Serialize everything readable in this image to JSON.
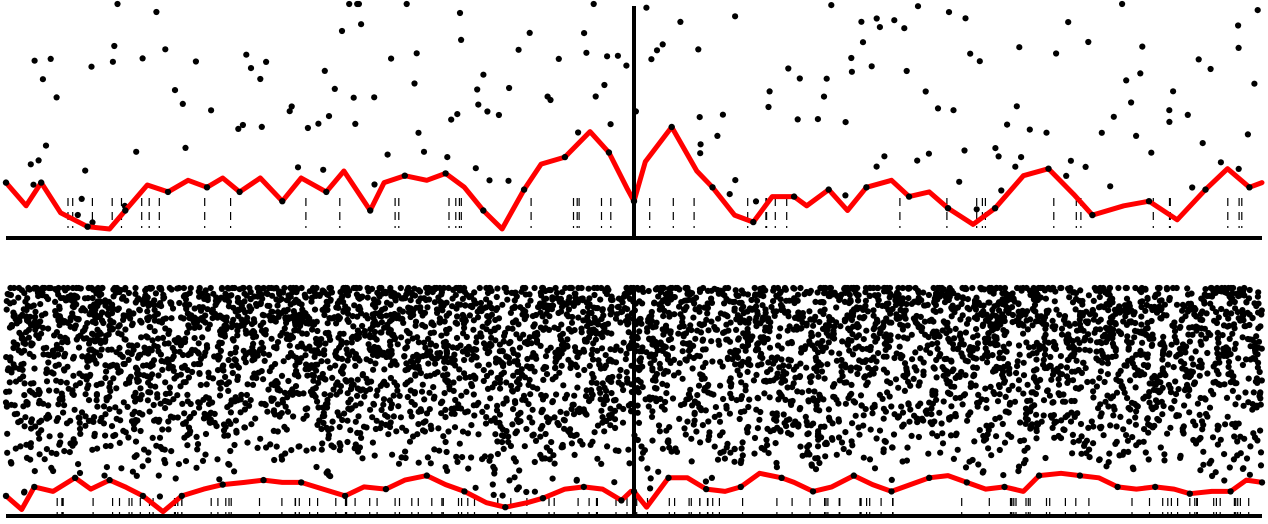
{
  "chart_data": [
    {
      "type": "scatter",
      "panel": "top",
      "x_range": [
        -1,
        1
      ],
      "y_range": [
        0,
        1
      ],
      "center_line_x": 0,
      "grid": false,
      "legend": "none",
      "colors": {
        "curve": "#ff0000",
        "points": "#000000",
        "axis": "#000000"
      },
      "curve_points": [
        [
          -1.0,
          0.23
        ],
        [
          -0.968,
          0.13
        ],
        [
          -0.944,
          0.23
        ],
        [
          -0.913,
          0.1
        ],
        [
          -0.87,
          0.04
        ],
        [
          -0.835,
          0.03
        ],
        [
          -0.81,
          0.11
        ],
        [
          -0.775,
          0.22
        ],
        [
          -0.742,
          0.19
        ],
        [
          -0.71,
          0.24
        ],
        [
          -0.68,
          0.21
        ],
        [
          -0.655,
          0.25
        ],
        [
          -0.628,
          0.19
        ],
        [
          -0.595,
          0.25
        ],
        [
          -0.56,
          0.15
        ],
        [
          -0.53,
          0.25
        ],
        [
          -0.49,
          0.19
        ],
        [
          -0.462,
          0.28
        ],
        [
          -0.42,
          0.11
        ],
        [
          -0.398,
          0.23
        ],
        [
          -0.365,
          0.26
        ],
        [
          -0.33,
          0.24
        ],
        [
          -0.3,
          0.27
        ],
        [
          -0.27,
          0.21
        ],
        [
          -0.24,
          0.11
        ],
        [
          -0.21,
          0.03
        ],
        [
          -0.175,
          0.2
        ],
        [
          -0.148,
          0.31
        ],
        [
          -0.11,
          0.34
        ],
        [
          -0.07,
          0.45
        ],
        [
          -0.04,
          0.36
        ],
        [
          -0.01,
          0.2
        ],
        [
          0.0,
          0.15
        ],
        [
          0.018,
          0.32
        ],
        [
          0.06,
          0.47
        ],
        [
          0.1,
          0.28
        ],
        [
          0.125,
          0.21
        ],
        [
          0.16,
          0.09
        ],
        [
          0.19,
          0.06
        ],
        [
          0.22,
          0.17
        ],
        [
          0.255,
          0.17
        ],
        [
          0.275,
          0.13
        ],
        [
          0.31,
          0.2
        ],
        [
          0.34,
          0.11
        ],
        [
          0.37,
          0.21
        ],
        [
          0.41,
          0.24
        ],
        [
          0.438,
          0.17
        ],
        [
          0.47,
          0.19
        ],
        [
          0.5,
          0.12
        ],
        [
          0.54,
          0.05
        ],
        [
          0.575,
          0.12
        ],
        [
          0.62,
          0.26
        ],
        [
          0.66,
          0.29
        ],
        [
          0.7,
          0.18
        ],
        [
          0.73,
          0.09
        ],
        [
          0.78,
          0.13
        ],
        [
          0.82,
          0.15
        ],
        [
          0.865,
          0.07
        ],
        [
          0.91,
          0.2
        ],
        [
          0.945,
          0.29
        ],
        [
          0.98,
          0.21
        ],
        [
          1.0,
          0.23
        ]
      ],
      "scatter_count": 180,
      "scatter_seed": 11,
      "rug_count": 46,
      "rug_seed": 7
    },
    {
      "type": "scatter",
      "panel": "bottom",
      "x_range": [
        -1,
        1
      ],
      "y_range": [
        0,
        1
      ],
      "center_line_x": 0,
      "grid": false,
      "legend": "none",
      "colors": {
        "curve": "#ff0000",
        "points": "#000000",
        "axis": "#000000"
      },
      "curve_points": [
        [
          -1.0,
          0.08
        ],
        [
          -0.975,
          0.02
        ],
        [
          -0.955,
          0.12
        ],
        [
          -0.925,
          0.1
        ],
        [
          -0.89,
          0.16
        ],
        [
          -0.865,
          0.11
        ],
        [
          -0.835,
          0.15
        ],
        [
          -0.81,
          0.12
        ],
        [
          -0.782,
          0.08
        ],
        [
          -0.75,
          0.01
        ],
        [
          -0.72,
          0.08
        ],
        [
          -0.685,
          0.11
        ],
        [
          -0.655,
          0.13
        ],
        [
          -0.62,
          0.14
        ],
        [
          -0.59,
          0.15
        ],
        [
          -0.56,
          0.14
        ],
        [
          -0.53,
          0.14
        ],
        [
          -0.495,
          0.11
        ],
        [
          -0.46,
          0.08
        ],
        [
          -0.43,
          0.12
        ],
        [
          -0.395,
          0.11
        ],
        [
          -0.365,
          0.15
        ],
        [
          -0.33,
          0.17
        ],
        [
          -0.3,
          0.13
        ],
        [
          -0.27,
          0.1
        ],
        [
          -0.235,
          0.05
        ],
        [
          -0.205,
          0.03
        ],
        [
          -0.17,
          0.05
        ],
        [
          -0.145,
          0.07
        ],
        [
          -0.11,
          0.11
        ],
        [
          -0.08,
          0.12
        ],
        [
          -0.05,
          0.11
        ],
        [
          -0.02,
          0.06
        ],
        [
          -0.005,
          0.1
        ],
        [
          0.0,
          0.1
        ],
        [
          0.02,
          0.03
        ],
        [
          0.055,
          0.16
        ],
        [
          0.085,
          0.16
        ],
        [
          0.115,
          0.11
        ],
        [
          0.145,
          0.1
        ],
        [
          0.17,
          0.12
        ],
        [
          0.2,
          0.18
        ],
        [
          0.235,
          0.16
        ],
        [
          0.255,
          0.14
        ],
        [
          0.285,
          0.1
        ],
        [
          0.315,
          0.12
        ],
        [
          0.35,
          0.17
        ],
        [
          0.38,
          0.13
        ],
        [
          0.41,
          0.1
        ],
        [
          0.44,
          0.13
        ],
        [
          0.47,
          0.16
        ],
        [
          0.5,
          0.17
        ],
        [
          0.53,
          0.14
        ],
        [
          0.56,
          0.11
        ],
        [
          0.59,
          0.12
        ],
        [
          0.62,
          0.1
        ],
        [
          0.645,
          0.17
        ],
        [
          0.68,
          0.18
        ],
        [
          0.71,
          0.17
        ],
        [
          0.74,
          0.16
        ],
        [
          0.77,
          0.12
        ],
        [
          0.8,
          0.11
        ],
        [
          0.83,
          0.12
        ],
        [
          0.86,
          0.11
        ],
        [
          0.885,
          0.09
        ],
        [
          0.92,
          0.1
        ],
        [
          0.95,
          0.1
        ],
        [
          0.975,
          0.15
        ],
        [
          1.0,
          0.14
        ]
      ],
      "scatter_count": 5200,
      "scatter_seed": 23,
      "rug_count": 120,
      "rug_seed": 31
    }
  ]
}
